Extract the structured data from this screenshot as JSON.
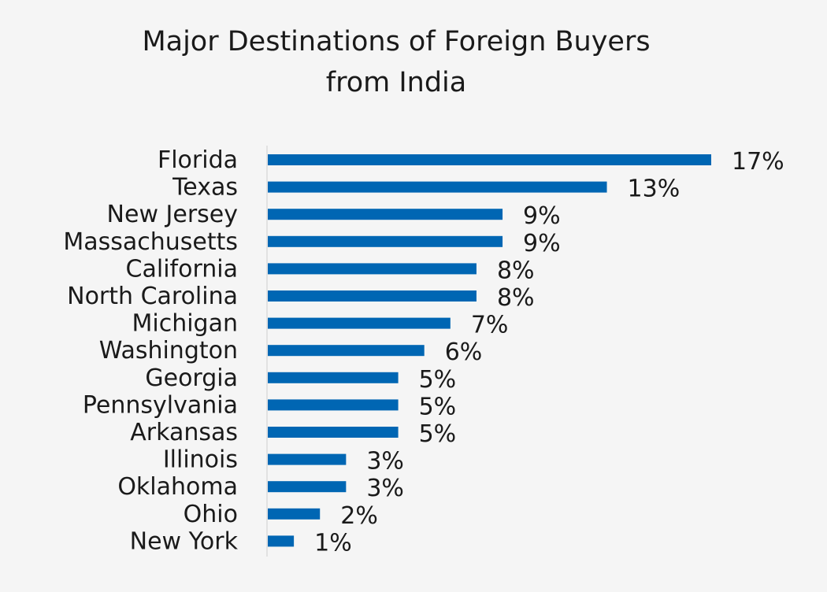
{
  "chart_data": {
    "type": "bar",
    "orientation": "horizontal",
    "title_lines": [
      "Major Destinations of Foreign Buyers",
      "from India"
    ],
    "categories": [
      "Florida",
      "Texas",
      "New Jersey",
      "Massachusetts",
      "California",
      "North Carolina",
      "Michigan",
      "Washington",
      "Georgia",
      "Pennsylvania",
      "Arkansas",
      "Illinois",
      "Oklahoma",
      "Ohio",
      "New York"
    ],
    "values": [
      17,
      13,
      9,
      9,
      8,
      8,
      7,
      6,
      5,
      5,
      5,
      3,
      3,
      2,
      1
    ],
    "value_labels": [
      "17%",
      "13%",
      "9%",
      "9%",
      "8%",
      "8%",
      "7%",
      "6%",
      "5%",
      "5%",
      "5%",
      "3%",
      "3%",
      "2%",
      "1%"
    ],
    "unit": "%",
    "xlim": [
      0,
      17
    ],
    "grid": false,
    "legend": "none",
    "bar_color": "#0066b3",
    "axis_color": "#d0d0d0"
  }
}
